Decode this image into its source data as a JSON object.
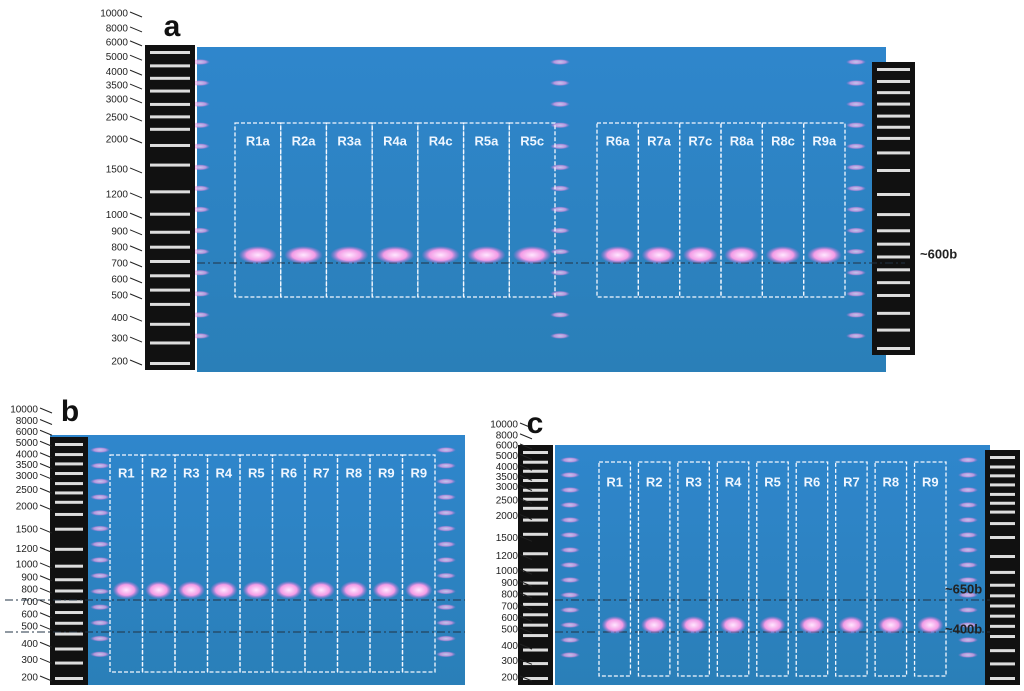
{
  "panels": [
    {
      "label": "a",
      "ladder": [
        10000,
        8000,
        6000,
        5000,
        4000,
        3500,
        3000,
        2500,
        2000,
        1500,
        1200,
        1000,
        900,
        800,
        700,
        600,
        500,
        400,
        300,
        200
      ],
      "lanes": [
        "R1a",
        "R2a",
        "R3a",
        "R4a",
        "R4c",
        "R5a",
        "R5c",
        "R6a",
        "R7a",
        "R7c",
        "R8a",
        "R8c",
        "R9a"
      ],
      "annotations": [
        "~600b"
      ]
    },
    {
      "label": "b",
      "ladder": [
        10000,
        8000,
        6000,
        5000,
        4000,
        3500,
        3000,
        2500,
        2000,
        1500,
        1200,
        1000,
        900,
        800,
        700,
        600,
        500,
        400,
        300,
        200
      ],
      "lanes": [
        "R1",
        "R2",
        "R3",
        "R4",
        "R5",
        "R6",
        "R7",
        "R8",
        "R9",
        "R9"
      ],
      "annotations": []
    },
    {
      "label": "c",
      "ladder": [
        10000,
        8000,
        6000,
        5000,
        4000,
        3500,
        3000,
        2500,
        2000,
        1500,
        1200,
        1000,
        900,
        800,
        700,
        600,
        500,
        400,
        300,
        200
      ],
      "lanes": [
        "R1",
        "R2",
        "R3",
        "R4",
        "R5",
        "R6",
        "R7",
        "R8",
        "R9"
      ],
      "annotations": [
        "~650b",
        "~400b"
      ]
    }
  ]
}
